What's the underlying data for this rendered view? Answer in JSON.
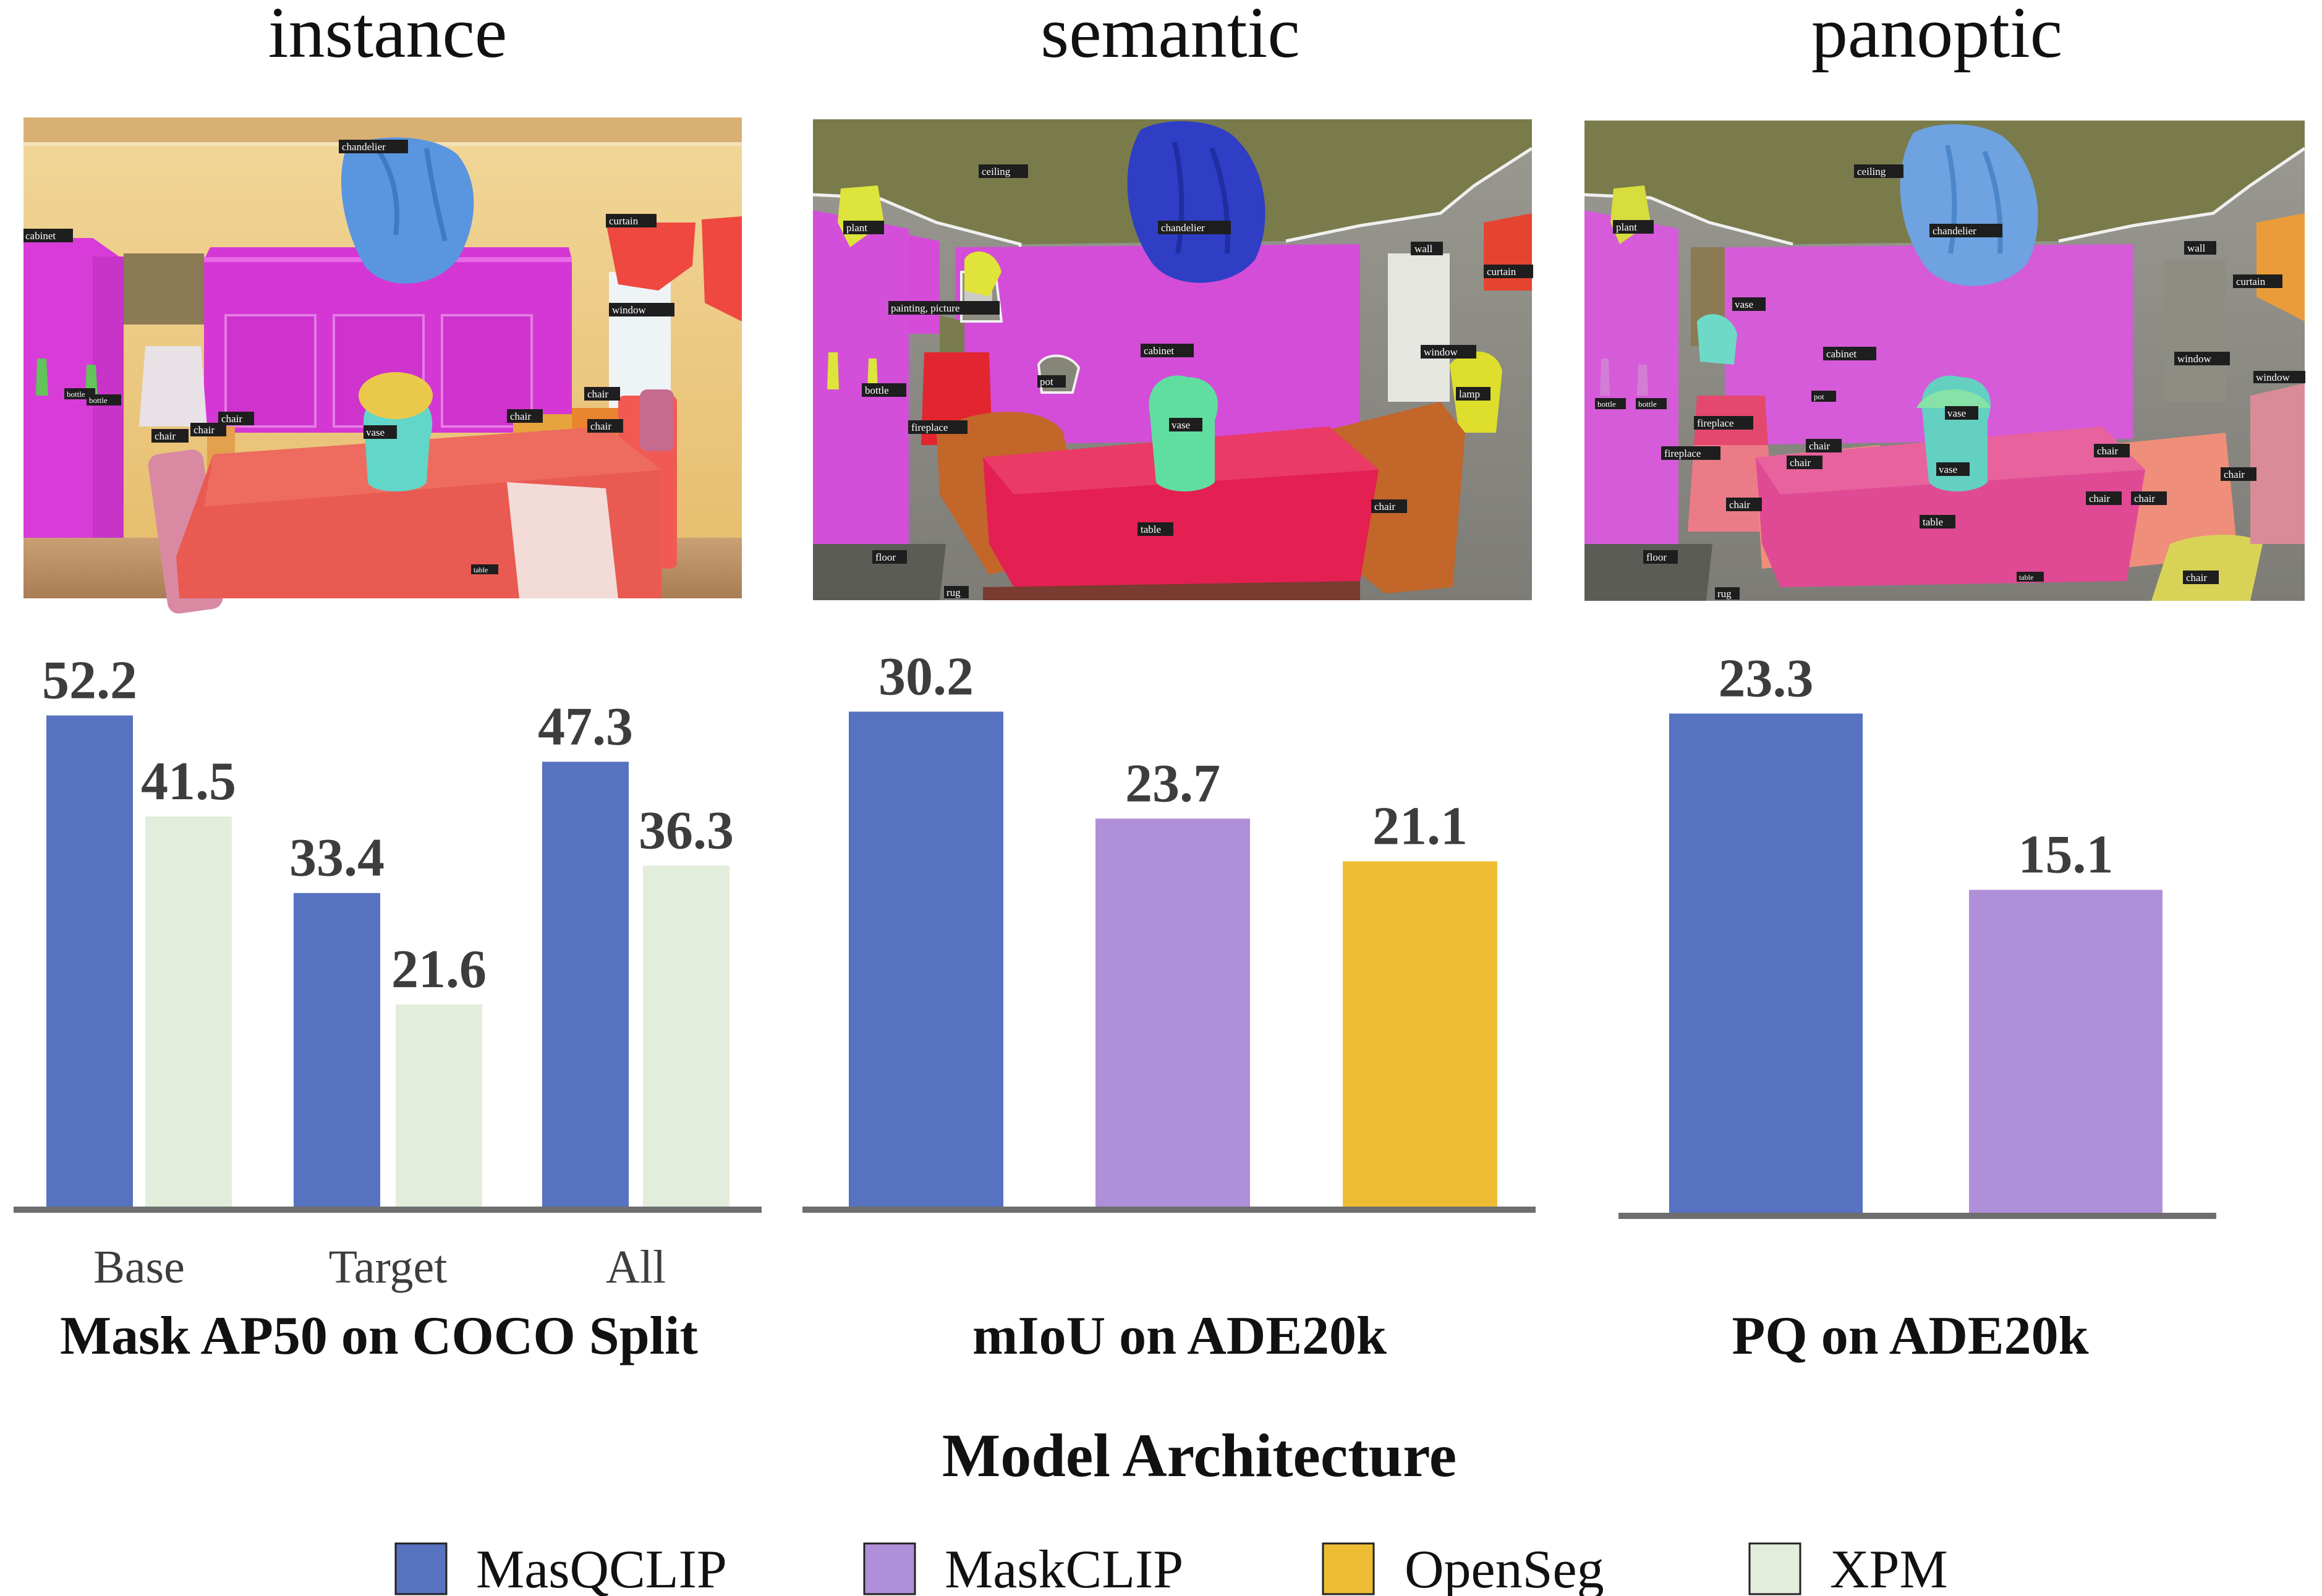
{
  "panels": [
    {
      "heading": "instance",
      "caption": "Mask AP50 on COCO Split",
      "image_labels": [
        "chandelier",
        "cabinet",
        "curtain",
        "window",
        "bottle",
        "bottle",
        "chair",
        "chair",
        "chair",
        "chair",
        "chair",
        "vase",
        "table",
        "chair"
      ]
    },
    {
      "heading": "semantic",
      "caption": "mIoU on ADE20k",
      "image_labels": [
        "ceiling",
        "chandelier",
        "plant",
        "wall",
        "curtain",
        "painting, picture",
        "cabinet",
        "window",
        "bottle",
        "pot",
        "vase",
        "lamp",
        "fireplace",
        "chair",
        "table",
        "floor",
        "rug"
      ]
    },
    {
      "heading": "panoptic",
      "caption": "PQ on ADE20k",
      "image_labels": [
        "ceiling",
        "chandelier",
        "plant",
        "wall",
        "curtain",
        "vase",
        "cabinet",
        "window",
        "window",
        "bottle",
        "bottle",
        "pot",
        "vase",
        "fireplace",
        "fireplace",
        "chair",
        "chair",
        "chair",
        "chair",
        "vase",
        "table",
        "chair",
        "chair",
        "chair",
        "floor",
        "rug",
        "table",
        "chair"
      ]
    }
  ],
  "colors": {
    "MasQCLIP": "#5672c0",
    "MaskCLIP": "#b08fd9",
    "OpenSeg": "#eebd34",
    "XPM": "#e3eddb",
    "axis": "#6e6e6e",
    "value_text": "#3d3d3d"
  },
  "chart_data": [
    {
      "type": "bar",
      "title": "Mask AP50 on COCO Split",
      "categories": [
        "Base",
        "Target",
        "All"
      ],
      "series": [
        {
          "name": "MasQCLIP",
          "values": [
            52.2,
            33.4,
            47.3
          ]
        },
        {
          "name": "XPM",
          "values": [
            41.5,
            21.6,
            36.3
          ]
        }
      ],
      "ylim": [
        0,
        54
      ]
    },
    {
      "type": "bar",
      "title": "mIoU on ADE20k",
      "categories": [
        ""
      ],
      "series": [
        {
          "name": "MasQCLIP",
          "values": [
            30.2
          ]
        },
        {
          "name": "MaskCLIP",
          "values": [
            23.7
          ]
        },
        {
          "name": "OpenSeg",
          "values": [
            21.1
          ]
        }
      ],
      "ylim": [
        0,
        31
      ]
    },
    {
      "type": "bar",
      "title": "PQ on ADE20k",
      "categories": [
        ""
      ],
      "series": [
        {
          "name": "MasQCLIP",
          "values": [
            23.3
          ]
        },
        {
          "name": "MaskCLIP",
          "values": [
            15.1
          ]
        }
      ],
      "ylim": [
        0,
        24
      ]
    }
  ],
  "legend": {
    "title": "Model Architecture",
    "items": [
      "MasQCLIP",
      "MaskCLIP",
      "OpenSeg",
      "XPM"
    ]
  }
}
